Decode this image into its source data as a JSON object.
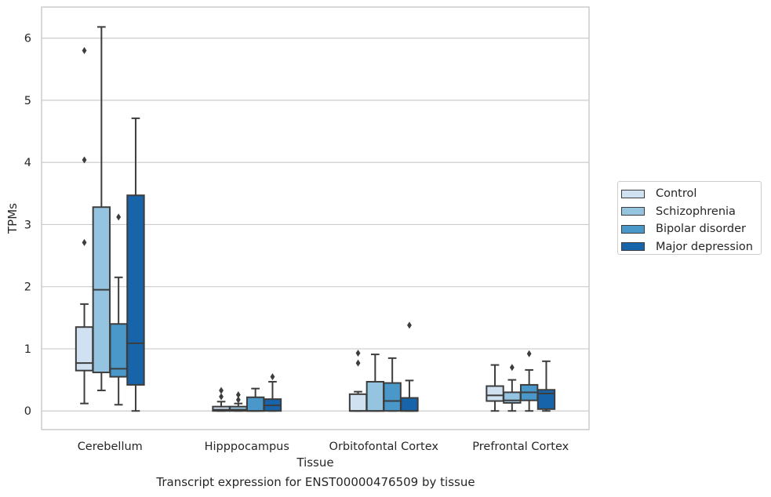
{
  "chart_data": {
    "type": "box",
    "title": "",
    "caption": "Transcript expression for ENST00000476509 by tissue",
    "xlabel": "Tissue",
    "ylabel": "TPMs",
    "ylim": [
      -0.3,
      6.5
    ],
    "yticks": [
      "0",
      "1",
      "2",
      "3",
      "4",
      "5",
      "6"
    ],
    "grid": true,
    "legend_position": "right",
    "categories": [
      "Cerebellum",
      "Hipppocampus",
      "Orbitofontal Cortex",
      "Prefrontal Cortex"
    ],
    "series": [
      {
        "name": "Control",
        "color": "#d0e1f2",
        "boxes": [
          {
            "whislo": 0.12,
            "q1": 0.65,
            "med": 0.77,
            "q3": 1.35,
            "whishi": 1.72,
            "fliers": [
              2.71,
              4.04,
              5.8
            ]
          },
          {
            "whislo": 0.0,
            "q1": 0.0,
            "med": 0.02,
            "q3": 0.07,
            "whishi": 0.15,
            "fliers": [
              0.23,
              0.33
            ]
          },
          {
            "whislo": 0.0,
            "q1": 0.0,
            "med": 0.0,
            "q3": 0.27,
            "whishi": 0.31,
            "fliers": [
              0.77,
              0.93
            ]
          },
          {
            "whislo": 0.0,
            "q1": 0.16,
            "med": 0.25,
            "q3": 0.4,
            "whishi": 0.74,
            "fliers": []
          }
        ]
      },
      {
        "name": "Schizophrenia",
        "color": "#94c4df",
        "boxes": [
          {
            "whislo": 0.33,
            "q1": 0.62,
            "med": 1.95,
            "q3": 3.28,
            "whishi": 6.18,
            "fliers": []
          },
          {
            "whislo": 0.0,
            "q1": 0.0,
            "med": 0.02,
            "q3": 0.07,
            "whishi": 0.12,
            "fliers": [
              0.18,
              0.26
            ]
          },
          {
            "whislo": 0.0,
            "q1": 0.0,
            "med": 0.0,
            "q3": 0.47,
            "whishi": 0.91,
            "fliers": []
          },
          {
            "whislo": 0.0,
            "q1": 0.13,
            "med": 0.17,
            "q3": 0.3,
            "whishi": 0.5,
            "fliers": [
              0.7
            ]
          }
        ]
      },
      {
        "name": "Bipolar disorder",
        "color": "#4a98c9",
        "boxes": [
          {
            "whislo": 0.1,
            "q1": 0.55,
            "med": 0.68,
            "q3": 1.4,
            "whishi": 2.15,
            "fliers": [
              3.12
            ]
          },
          {
            "whislo": 0.0,
            "q1": 0.0,
            "med": 0.0,
            "q3": 0.22,
            "whishi": 0.36,
            "fliers": []
          },
          {
            "whislo": 0.0,
            "q1": 0.0,
            "med": 0.16,
            "q3": 0.45,
            "whishi": 0.85,
            "fliers": []
          },
          {
            "whislo": 0.0,
            "q1": 0.17,
            "med": 0.3,
            "q3": 0.42,
            "whishi": 0.66,
            "fliers": [
              0.92
            ]
          }
        ]
      },
      {
        "name": "Major depression",
        "color": "#1764ab",
        "boxes": [
          {
            "whislo": 0.0,
            "q1": 0.42,
            "med": 1.09,
            "q3": 3.47,
            "whishi": 4.71,
            "fliers": []
          },
          {
            "whislo": 0.0,
            "q1": 0.0,
            "med": 0.09,
            "q3": 0.19,
            "whishi": 0.47,
            "fliers": [
              0.55
            ]
          },
          {
            "whislo": 0.0,
            "q1": 0.0,
            "med": 0.0,
            "q3": 0.21,
            "whishi": 0.49,
            "fliers": [
              1.38
            ]
          },
          {
            "whislo": 0.0,
            "q1": 0.03,
            "med": 0.28,
            "q3": 0.34,
            "whishi": 0.8,
            "fliers": []
          }
        ]
      }
    ]
  }
}
